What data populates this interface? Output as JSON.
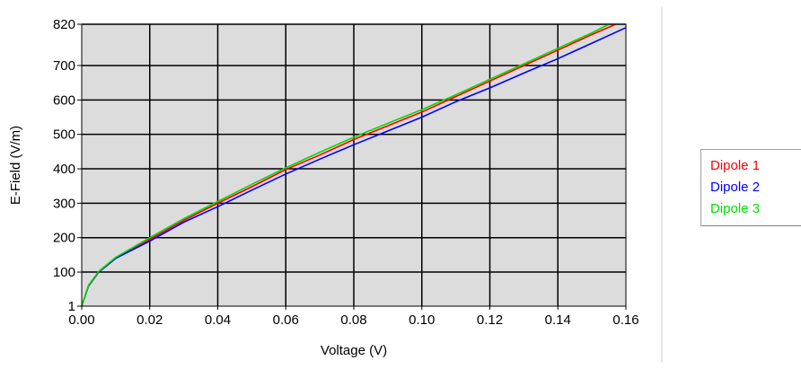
{
  "chart_data": {
    "type": "line",
    "xlabel": "Voltage (V)",
    "ylabel": "E-Field (V/m)",
    "xlim": [
      0,
      0.16
    ],
    "ylim": [
      1,
      820
    ],
    "x_ticks": [
      "0.00",
      "0.02",
      "0.04",
      "0.06",
      "0.08",
      "0.10",
      "0.12",
      "0.14",
      "0.16"
    ],
    "y_ticks": [
      {
        "value": 1,
        "label": "1"
      },
      {
        "value": 100,
        "label": "100"
      },
      {
        "value": 200,
        "label": "200"
      },
      {
        "value": 300,
        "label": "300"
      },
      {
        "value": 400,
        "label": "400"
      },
      {
        "value": 500,
        "label": "500"
      },
      {
        "value": 600,
        "label": "600"
      },
      {
        "value": 700,
        "label": "700"
      },
      {
        "value": 820,
        "label": "820"
      }
    ],
    "grid": true,
    "plot_background": "#dcdcdc",
    "legend_position": "right",
    "series": [
      {
        "name": "Dipole 1",
        "color": "#ff0000",
        "x": [
          0,
          0.002,
          0.005,
          0.01,
          0.02,
          0.03,
          0.04,
          0.05,
          0.06,
          0.07,
          0.08,
          0.09,
          0.1,
          0.11,
          0.12,
          0.13,
          0.14,
          0.15,
          0.157
        ],
        "y": [
          1,
          60,
          100,
          140,
          195,
          250,
          300,
          348,
          398,
          440,
          485,
          525,
          565,
          610,
          655,
          700,
          745,
          790,
          820
        ]
      },
      {
        "name": "Dipole 2",
        "color": "#0000ff",
        "x": [
          0,
          0.002,
          0.005,
          0.01,
          0.02,
          0.03,
          0.04,
          0.05,
          0.06,
          0.07,
          0.08,
          0.09,
          0.1,
          0.11,
          0.12,
          0.13,
          0.14,
          0.15,
          0.16
        ],
        "y": [
          1,
          60,
          100,
          140,
          190,
          245,
          290,
          338,
          385,
          428,
          470,
          510,
          550,
          595,
          635,
          678,
          720,
          765,
          810
        ]
      },
      {
        "name": "Dipole 3",
        "color": "#00dd00",
        "x": [
          0,
          0.002,
          0.005,
          0.01,
          0.02,
          0.03,
          0.04,
          0.05,
          0.06,
          0.07,
          0.08,
          0.09,
          0.1,
          0.11,
          0.12,
          0.13,
          0.14,
          0.15,
          0.155
        ],
        "y": [
          1,
          62,
          102,
          143,
          200,
          255,
          305,
          355,
          403,
          448,
          492,
          532,
          572,
          615,
          660,
          705,
          750,
          795,
          820
        ]
      }
    ]
  }
}
